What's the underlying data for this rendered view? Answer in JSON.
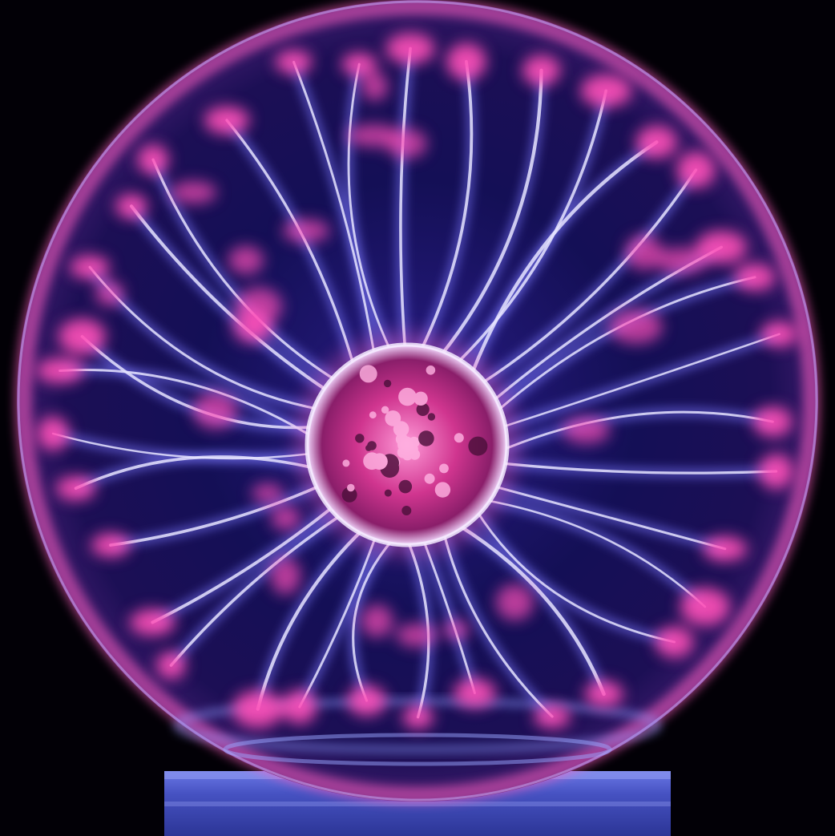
{
  "image": {
    "subject": "plasma-ball",
    "colors": {
      "background": "#020006",
      "glass_tint": "#1a1060",
      "filament_core": "#e6e4ff",
      "filament_glow": "#7c78ff",
      "plasma_tip": "#ff4fb8",
      "inner_electrode": "#ff6fc4",
      "base": "#4a56c8"
    }
  }
}
